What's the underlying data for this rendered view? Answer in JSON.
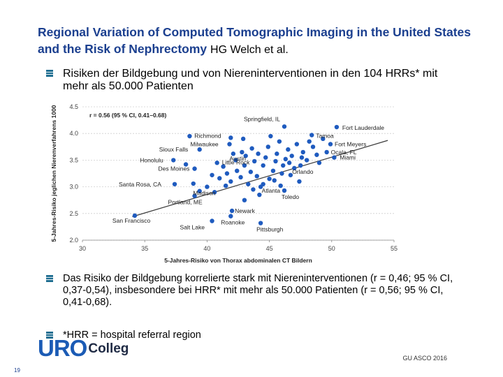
{
  "slide": {
    "title": "Regional Variation of Computed Tomographic Imaging in the United States and the Risk of Nephrectomy",
    "author": "HG Welch et al.",
    "bullets": [
      "Risiken der Bildgebung und von Niereninterventionen in den 104 HRRs* mit mehr als 50.000 Patienten",
      "Das Risiko der Bildgebung korrelierte stark mit Niereninterventionen (r = 0,46; 95 % CI, 0,37-0,54), insbesondere bei HRR* mit mehr als 50.000 Patienten (r = 0,56; 95 % CI, 0,41-0,68).",
      "*HRR = hospital referral region"
    ],
    "logo_uro": "URO",
    "logo_college": "Colleg",
    "footer": "GU ASCO 2016",
    "page_number": "19"
  },
  "colors": {
    "title": "#1b3f8f",
    "points": "#1f5bbf",
    "bullet": "#1b6b8f",
    "trend": "#3a3a3a",
    "grid": "#cfcfcf"
  },
  "chart_data": {
    "type": "scatter",
    "xlabel": "5-Jahres-Risiko von Thorax abdominalen CT Bildern",
    "ylabel": "5-Jahres-Risiko jeglichen Nierenverfahrens 1000",
    "xlim": [
      30,
      55
    ],
    "ylim": [
      2.0,
      4.5
    ],
    "xticks": [
      30,
      35,
      40,
      45,
      50,
      55
    ],
    "yticks": [
      2.0,
      2.5,
      3.0,
      3.5,
      4.0,
      4.5
    ],
    "grid": "horizontal",
    "annotation": "r = 0.56 (95 % CI, 0.41–0.68)",
    "trendline": {
      "x": [
        34,
        54.5
      ],
      "y": [
        2.44,
        3.87
      ]
    },
    "points": [
      {
        "x": 34.2,
        "y": 2.46,
        "label": "San Francisco"
      },
      {
        "x": 40.4,
        "y": 2.36,
        "label": "Salt Lake"
      },
      {
        "x": 44.3,
        "y": 2.32,
        "label": "Pittsburgh"
      },
      {
        "x": 42.0,
        "y": 2.55,
        "label": "Newark"
      },
      {
        "x": 41.9,
        "y": 2.45,
        "label": "Roanoke"
      },
      {
        "x": 39.0,
        "y": 2.83,
        "label": "Portland, ME"
      },
      {
        "x": 40.0,
        "y": 3.0,
        "label": "Madison"
      },
      {
        "x": 44.5,
        "y": 3.05,
        "label": "Atlanta"
      },
      {
        "x": 46.2,
        "y": 2.93,
        "label": "Toledo"
      },
      {
        "x": 37.4,
        "y": 3.05,
        "label": "Santa Rosa, CA"
      },
      {
        "x": 39.0,
        "y": 3.34,
        "label": "Des Moines"
      },
      {
        "x": 37.3,
        "y": 3.5,
        "label": "Honolulu"
      },
      {
        "x": 39.4,
        "y": 3.7,
        "label": "Sioux Falls"
      },
      {
        "x": 41.9,
        "y": 3.92,
        "label": "Richmond"
      },
      {
        "x": 41.8,
        "y": 3.8,
        "label": "Milwaukee"
      },
      {
        "x": 42.8,
        "y": 3.65,
        "label": "Austin"
      },
      {
        "x": 43.1,
        "y": 3.58,
        "label": "Little Rock"
      },
      {
        "x": 46.2,
        "y": 4.13,
        "label": "Springfield, IL"
      },
      {
        "x": 48.4,
        "y": 3.97,
        "label": "Tamoa"
      },
      {
        "x": 50.4,
        "y": 4.12,
        "label": "Fort Lauderdale"
      },
      {
        "x": 49.9,
        "y": 3.8,
        "label": "Fort Meyers"
      },
      {
        "x": 49.6,
        "y": 3.65,
        "label": "Ocala, FL"
      },
      {
        "x": 50.2,
        "y": 3.55,
        "label": "Miami"
      },
      {
        "x": 47.5,
        "y": 3.4,
        "label": "Orlando"
      },
      {
        "x": 38.6,
        "y": 3.95,
        "label": ""
      },
      {
        "x": 38.3,
        "y": 3.42,
        "label": ""
      },
      {
        "x": 38.9,
        "y": 3.06,
        "label": ""
      },
      {
        "x": 39.4,
        "y": 2.92,
        "label": ""
      },
      {
        "x": 40.4,
        "y": 3.22,
        "label": ""
      },
      {
        "x": 40.8,
        "y": 3.45,
        "label": ""
      },
      {
        "x": 41.0,
        "y": 3.16,
        "label": ""
      },
      {
        "x": 41.3,
        "y": 3.38,
        "label": ""
      },
      {
        "x": 41.6,
        "y": 3.25,
        "label": ""
      },
      {
        "x": 41.9,
        "y": 3.1,
        "label": ""
      },
      {
        "x": 42.3,
        "y": 3.5,
        "label": ""
      },
      {
        "x": 42.4,
        "y": 3.3,
        "label": ""
      },
      {
        "x": 42.7,
        "y": 3.18,
        "label": ""
      },
      {
        "x": 42.9,
        "y": 3.9,
        "label": ""
      },
      {
        "x": 43.0,
        "y": 3.4,
        "label": ""
      },
      {
        "x": 43.3,
        "y": 3.05,
        "label": ""
      },
      {
        "x": 43.5,
        "y": 3.28,
        "label": ""
      },
      {
        "x": 43.6,
        "y": 3.72,
        "label": ""
      },
      {
        "x": 43.8,
        "y": 3.48,
        "label": ""
      },
      {
        "x": 44.0,
        "y": 3.2,
        "label": ""
      },
      {
        "x": 44.1,
        "y": 3.62,
        "label": ""
      },
      {
        "x": 44.3,
        "y": 3.0,
        "label": ""
      },
      {
        "x": 44.5,
        "y": 3.4,
        "label": ""
      },
      {
        "x": 44.7,
        "y": 3.55,
        "label": ""
      },
      {
        "x": 44.9,
        "y": 3.75,
        "label": ""
      },
      {
        "x": 45.0,
        "y": 3.15,
        "label": ""
      },
      {
        "x": 45.1,
        "y": 3.95,
        "label": ""
      },
      {
        "x": 45.3,
        "y": 3.3,
        "label": ""
      },
      {
        "x": 45.5,
        "y": 3.48,
        "label": ""
      },
      {
        "x": 45.6,
        "y": 3.62,
        "label": ""
      },
      {
        "x": 45.8,
        "y": 3.85,
        "label": ""
      },
      {
        "x": 46.0,
        "y": 3.25,
        "label": ""
      },
      {
        "x": 46.1,
        "y": 3.4,
        "label": ""
      },
      {
        "x": 46.3,
        "y": 3.52,
        "label": ""
      },
      {
        "x": 46.5,
        "y": 3.7,
        "label": ""
      },
      {
        "x": 46.6,
        "y": 3.45,
        "label": ""
      },
      {
        "x": 46.8,
        "y": 3.58,
        "label": ""
      },
      {
        "x": 47.0,
        "y": 3.35,
        "label": ""
      },
      {
        "x": 47.2,
        "y": 3.8,
        "label": ""
      },
      {
        "x": 47.4,
        "y": 3.1,
        "label": ""
      },
      {
        "x": 47.7,
        "y": 3.65,
        "label": ""
      },
      {
        "x": 48.0,
        "y": 3.5,
        "label": ""
      },
      {
        "x": 48.2,
        "y": 3.85,
        "label": ""
      },
      {
        "x": 48.5,
        "y": 3.75,
        "label": ""
      },
      {
        "x": 48.8,
        "y": 3.6,
        "label": ""
      },
      {
        "x": 49.0,
        "y": 3.45,
        "label": ""
      },
      {
        "x": 49.3,
        "y": 3.9,
        "label": ""
      },
      {
        "x": 45.9,
        "y": 3.02,
        "label": ""
      },
      {
        "x": 44.2,
        "y": 2.85,
        "label": ""
      },
      {
        "x": 43.0,
        "y": 2.75,
        "label": ""
      },
      {
        "x": 40.6,
        "y": 2.9,
        "label": ""
      },
      {
        "x": 43.7,
        "y": 2.95,
        "label": ""
      },
      {
        "x": 45.4,
        "y": 3.12,
        "label": ""
      },
      {
        "x": 46.7,
        "y": 3.22,
        "label": ""
      },
      {
        "x": 47.6,
        "y": 3.55,
        "label": ""
      },
      {
        "x": 42.1,
        "y": 3.62,
        "label": ""
      },
      {
        "x": 41.5,
        "y": 3.02,
        "label": ""
      }
    ]
  }
}
